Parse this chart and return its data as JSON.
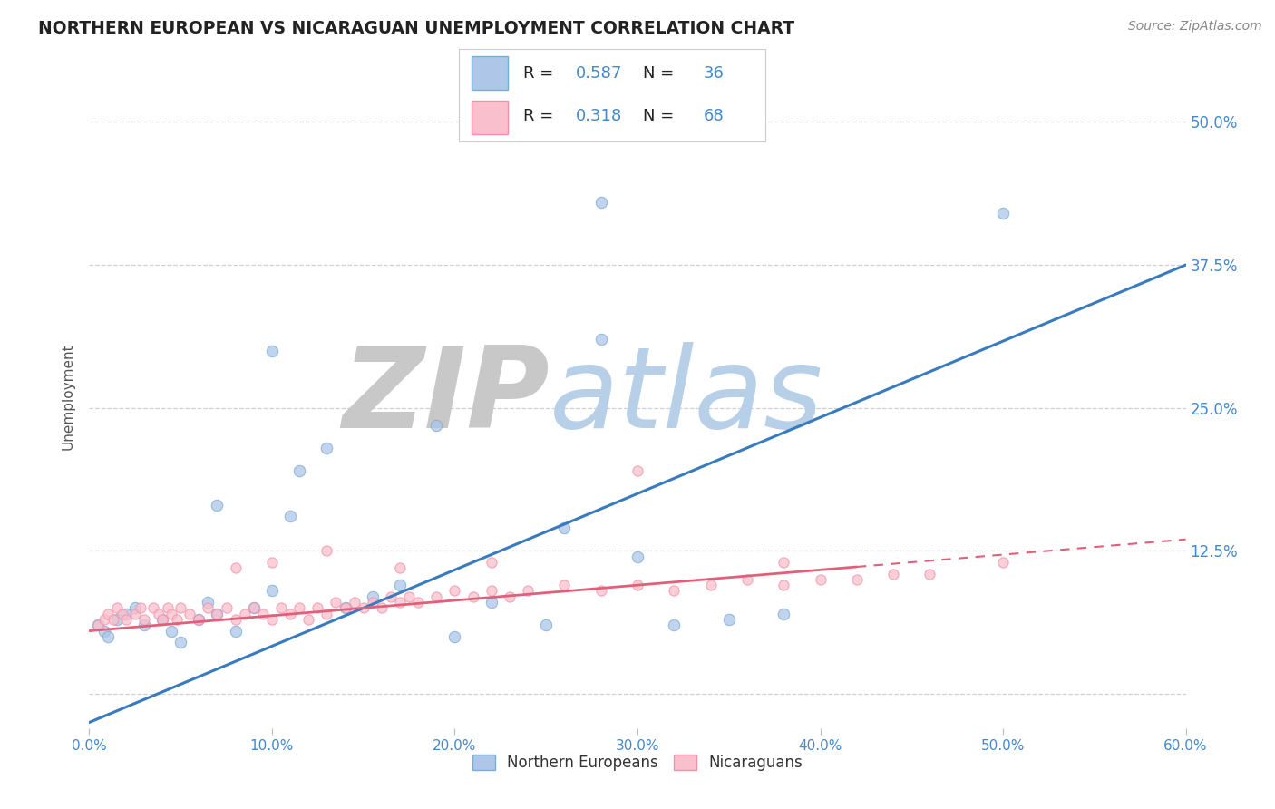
{
  "title": "NORTHERN EUROPEAN VS NICARAGUAN UNEMPLOYMENT CORRELATION CHART",
  "source": "Source: ZipAtlas.com",
  "ylabel": "Unemployment",
  "xlim": [
    0.0,
    0.6
  ],
  "ylim": [
    -0.03,
    0.55
  ],
  "yticks": [
    0.0,
    0.125,
    0.25,
    0.375,
    0.5
  ],
  "ytick_labels": [
    "",
    "12.5%",
    "25.0%",
    "37.5%",
    "50.0%"
  ],
  "xticks": [
    0.0,
    0.1,
    0.2,
    0.3,
    0.4,
    0.5,
    0.6
  ],
  "xtick_labels": [
    "0.0%",
    "10.0%",
    "20.0%",
    "30.0%",
    "40.0%",
    "50.0%",
    "60.0%"
  ],
  "blue_fill_color": "#aec6e8",
  "blue_edge_color": "#7aadd4",
  "pink_fill_color": "#f9bfcc",
  "pink_edge_color": "#f090aa",
  "blue_line_color": "#3a7abf",
  "pink_line_color": "#e0607a",
  "grid_color": "#d0d0d0",
  "watermark_ZIP_color": "#c8c8c8",
  "watermark_atlas_color": "#b8cfe8",
  "legend_r1": "R = ",
  "legend_v1": "0.587",
  "legend_n1": "   N = ",
  "legend_nv1": "36",
  "legend_r2": "R =  ",
  "legend_v2": "0.318",
  "legend_n2": "   N = ",
  "legend_nv2": "68",
  "legend_label1": "Northern Europeans",
  "legend_label2": "Nicaraguans",
  "blue_scatter_x": [
    0.005,
    0.008,
    0.01,
    0.015,
    0.02,
    0.025,
    0.03,
    0.04,
    0.045,
    0.05,
    0.06,
    0.065,
    0.07,
    0.08,
    0.09,
    0.1,
    0.11,
    0.115,
    0.13,
    0.14,
    0.155,
    0.17,
    0.19,
    0.22,
    0.25,
    0.26,
    0.28,
    0.3,
    0.32,
    0.35,
    0.28,
    0.5,
    0.07,
    0.1,
    0.2,
    0.38
  ],
  "blue_scatter_y": [
    0.06,
    0.055,
    0.05,
    0.065,
    0.07,
    0.075,
    0.06,
    0.065,
    0.055,
    0.045,
    0.065,
    0.08,
    0.07,
    0.055,
    0.075,
    0.09,
    0.155,
    0.195,
    0.215,
    0.075,
    0.085,
    0.095,
    0.235,
    0.08,
    0.06,
    0.145,
    0.31,
    0.12,
    0.06,
    0.065,
    0.43,
    0.42,
    0.165,
    0.3,
    0.05,
    0.07
  ],
  "pink_scatter_x": [
    0.005,
    0.008,
    0.01,
    0.013,
    0.015,
    0.018,
    0.02,
    0.025,
    0.028,
    0.03,
    0.035,
    0.038,
    0.04,
    0.043,
    0.045,
    0.048,
    0.05,
    0.055,
    0.06,
    0.065,
    0.07,
    0.075,
    0.08,
    0.085,
    0.09,
    0.095,
    0.1,
    0.105,
    0.11,
    0.115,
    0.12,
    0.125,
    0.13,
    0.135,
    0.14,
    0.145,
    0.15,
    0.155,
    0.16,
    0.165,
    0.17,
    0.175,
    0.18,
    0.19,
    0.2,
    0.21,
    0.22,
    0.23,
    0.24,
    0.26,
    0.28,
    0.3,
    0.32,
    0.34,
    0.36,
    0.38,
    0.4,
    0.42,
    0.44,
    0.46,
    0.08,
    0.1,
    0.13,
    0.17,
    0.22,
    0.3,
    0.38,
    0.5
  ],
  "pink_scatter_y": [
    0.06,
    0.065,
    0.07,
    0.065,
    0.075,
    0.07,
    0.065,
    0.07,
    0.075,
    0.065,
    0.075,
    0.07,
    0.065,
    0.075,
    0.07,
    0.065,
    0.075,
    0.07,
    0.065,
    0.075,
    0.07,
    0.075,
    0.065,
    0.07,
    0.075,
    0.07,
    0.065,
    0.075,
    0.07,
    0.075,
    0.065,
    0.075,
    0.07,
    0.08,
    0.075,
    0.08,
    0.075,
    0.08,
    0.075,
    0.085,
    0.08,
    0.085,
    0.08,
    0.085,
    0.09,
    0.085,
    0.09,
    0.085,
    0.09,
    0.095,
    0.09,
    0.095,
    0.09,
    0.095,
    0.1,
    0.095,
    0.1,
    0.1,
    0.105,
    0.105,
    0.11,
    0.115,
    0.125,
    0.11,
    0.115,
    0.195,
    0.115,
    0.115
  ],
  "blue_trend_x0": 0.0,
  "blue_trend_y0": -0.025,
  "blue_trend_x1": 0.6,
  "blue_trend_y1": 0.375,
  "pink_trend_x0": 0.0,
  "pink_trend_y0": 0.055,
  "pink_trend_x1": 0.6,
  "pink_trend_y1": 0.135,
  "bg_color": "#ffffff",
  "title_color": "#222222",
  "axis_label_color": "#555555",
  "tick_color": "#4488cc",
  "legend_text_color": "#222222",
  "legend_val_color": "#4488cc",
  "source_color": "#888888"
}
